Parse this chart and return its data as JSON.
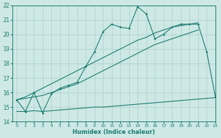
{
  "x_values": [
    0,
    1,
    2,
    3,
    4,
    5,
    6,
    7,
    8,
    9,
    10,
    11,
    12,
    13,
    14,
    15,
    16,
    17,
    18,
    19,
    20,
    21,
    22,
    23
  ],
  "line_main_y": [
    15.5,
    14.7,
    16.0,
    14.6,
    15.9,
    16.3,
    16.5,
    16.7,
    17.8,
    18.8,
    20.2,
    20.7,
    20.5,
    20.4,
    21.9,
    21.4,
    19.7,
    20.0,
    20.5,
    20.7,
    20.7,
    20.7,
    18.8,
    15.7
  ],
  "line_trend1_y": [
    15.5,
    15.7,
    16.0,
    16.3,
    16.6,
    16.9,
    17.2,
    17.5,
    17.8,
    18.1,
    18.4,
    18.7,
    19.0,
    19.3,
    19.6,
    19.8,
    20.1,
    20.3,
    20.5,
    20.6,
    20.7,
    20.8,
    null,
    null
  ],
  "line_trend2_y": [
    15.5,
    15.6,
    15.7,
    15.8,
    16.0,
    16.2,
    16.4,
    16.6,
    16.9,
    17.2,
    17.5,
    17.8,
    18.1,
    18.4,
    18.7,
    19.0,
    19.3,
    19.5,
    19.7,
    19.9,
    20.1,
    20.3,
    null,
    null
  ],
  "line_min_y": [
    14.7,
    14.7,
    14.75,
    14.7,
    14.75,
    14.8,
    14.85,
    14.9,
    14.95,
    15.0,
    15.0,
    15.05,
    15.1,
    15.15,
    15.2,
    15.25,
    15.3,
    15.35,
    15.4,
    15.45,
    15.5,
    15.55,
    15.6,
    15.65
  ],
  "line_color": "#1a7a6e",
  "background_color": "#cde8e5",
  "grid_color": "#aacfcc",
  "xlabel": "Humidex (Indice chaleur)",
  "ylim": [
    14,
    22
  ],
  "xlim": [
    -0.5,
    23
  ],
  "yticks": [
    14,
    15,
    16,
    17,
    18,
    19,
    20,
    21,
    22
  ],
  "xticks": [
    0,
    1,
    2,
    3,
    4,
    5,
    6,
    7,
    8,
    9,
    10,
    11,
    12,
    13,
    14,
    15,
    16,
    17,
    18,
    19,
    20,
    21,
    22,
    23
  ]
}
